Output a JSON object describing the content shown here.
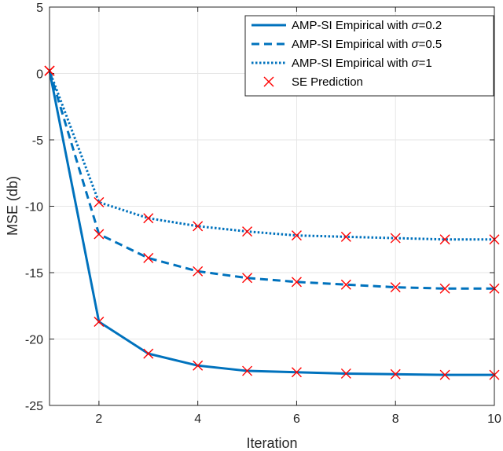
{
  "chart_data": {
    "type": "line",
    "title": "",
    "xlabel": "Iteration",
    "ylabel": "MSE (db)",
    "xlim": [
      1,
      10
    ],
    "ylim": [
      -25,
      5
    ],
    "grid": true,
    "legend_position": "top-right",
    "xticks": [
      "2",
      "4",
      "6",
      "8",
      "10"
    ],
    "xtick_values": [
      2,
      4,
      6,
      8,
      10
    ],
    "yticks": [
      "5",
      "0",
      "-5",
      "-10",
      "-15",
      "-20",
      "-25"
    ],
    "ytick_values": [
      5,
      0,
      -5,
      -10,
      -15,
      -20,
      -25
    ],
    "x": [
      1,
      2,
      3,
      4,
      5,
      6,
      7,
      8,
      9,
      10
    ],
    "series": [
      {
        "name": "AMP-SI Empirical with σ=0.2",
        "legend_prefix": "AMP-SI Empirical with ",
        "legend_sym": "σ",
        "legend_suffix": "=0.2",
        "style": "solid",
        "color": "#0072BD",
        "values": [
          0.2,
          -18.7,
          -21.1,
          -22.0,
          -22.4,
          -22.5,
          -22.6,
          -22.65,
          -22.7,
          -22.7
        ]
      },
      {
        "name": "AMP-SI Empirical with σ=0.5",
        "legend_prefix": "AMP-SI Empirical with ",
        "legend_sym": "σ",
        "legend_suffix": "=0.5",
        "style": "dashed",
        "color": "#0072BD",
        "values": [
          0.2,
          -12.1,
          -13.9,
          -14.9,
          -15.4,
          -15.7,
          -15.9,
          -16.1,
          -16.2,
          -16.2
        ]
      },
      {
        "name": "AMP-SI Empirical with σ=1",
        "legend_prefix": "AMP-SI Empirical with ",
        "legend_sym": "σ",
        "legend_suffix": "=1",
        "style": "dotted",
        "color": "#0072BD",
        "values": [
          0.2,
          -9.7,
          -10.9,
          -11.5,
          -11.9,
          -12.2,
          -12.3,
          -12.4,
          -12.5,
          -12.5
        ]
      }
    ],
    "markers": {
      "name": "SE Prediction",
      "marker": "x",
      "color": "#FF0000"
    }
  }
}
